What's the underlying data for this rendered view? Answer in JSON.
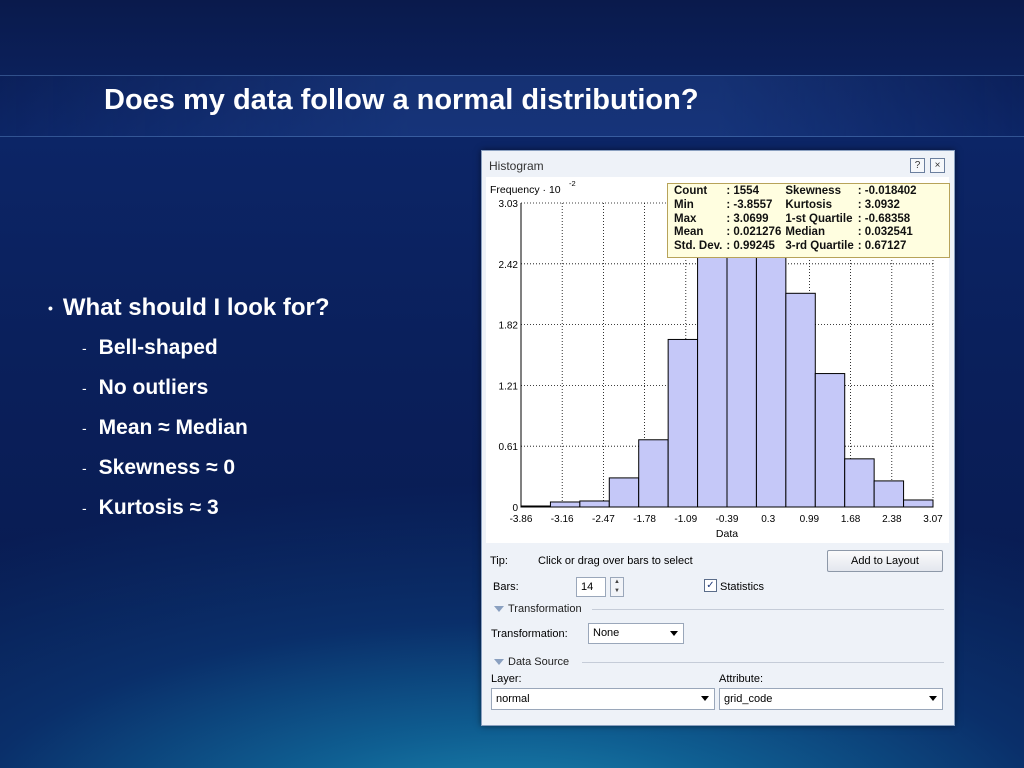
{
  "slide": {
    "title": "Does my data follow a normal distribution?",
    "bullet": "What should I look for?",
    "sub_bullets": [
      "Bell-shaped",
      "No outliers",
      "Mean ≈ Median",
      "Skewness ≈ 0",
      "Kurtosis ≈ 3"
    ]
  },
  "window": {
    "title": "Histogram",
    "help_glyph": "?",
    "close_glyph": "×"
  },
  "stats": {
    "rows": [
      [
        "Count",
        ": 1554",
        "Skewness",
        ": -0.018402"
      ],
      [
        "Min",
        ": -3.8557",
        "Kurtosis",
        ": 3.0932"
      ],
      [
        "Max",
        ": 3.0699",
        "1-st Quartile",
        ": -0.68358"
      ],
      [
        "Mean",
        ": 0.021276",
        "Median",
        ": 0.032541"
      ],
      [
        "Std. Dev.",
        ": 0.99245",
        "3-rd Quartile",
        ": 0.67127"
      ]
    ]
  },
  "chart_data": {
    "type": "bar",
    "ylabel": "Frequency · 10",
    "ylabel_exponent": "-2",
    "xlabel": "Data",
    "x_ticks": [
      "-3.86",
      "-3.16",
      "-2.47",
      "-1.78",
      "-1.09",
      "-0.39",
      "0.3",
      "0.99",
      "1.68",
      "2.38",
      "3.07"
    ],
    "y_ticks": [
      "0",
      "0.61",
      "1.21",
      "1.82",
      "2.42",
      "3.03"
    ],
    "ylim": [
      0,
      3.03
    ],
    "xlim": [
      -3.86,
      3.07
    ],
    "bins": 14,
    "values": [
      0.01,
      0.05,
      0.06,
      0.29,
      0.67,
      1.67,
      2.7,
      3.03,
      2.65,
      2.13,
      1.33,
      0.48,
      0.26,
      0.07
    ],
    "bar_color": "#c5c8f8",
    "bar_stroke": "#000000",
    "grid": "dotted"
  },
  "controls": {
    "tip_label": "Tip:",
    "tip_text": "Click or drag over bars to select",
    "add_to_layout": "Add to Layout",
    "bars_label": "Bars:",
    "bars_value": "14",
    "statistics_label": "Statistics",
    "statistics_checked": true,
    "transformation_section": "Transformation",
    "transformation_label": "Transformation:",
    "transformation_value": "None",
    "data_source_section": "Data Source",
    "layer_label": "Layer:",
    "layer_value": "normal",
    "attribute_label": "Attribute:",
    "attribute_value": "grid_code"
  }
}
